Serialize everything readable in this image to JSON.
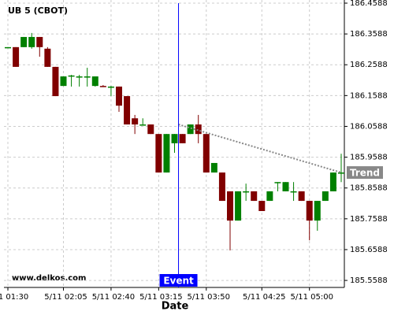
{
  "chart_data": {
    "type": "candlestick",
    "title": "UB 5 (CBOT)",
    "x_label": "Date",
    "watermark": "www.delkos.com",
    "categories": [
      "1 01:30",
      null,
      null,
      null,
      null,
      null,
      null,
      "5/11 02:05",
      null,
      null,
      null,
      null,
      null,
      "5/11 02:40",
      null,
      null,
      null,
      null,
      null,
      "5/11 03:15",
      null,
      null,
      null,
      null,
      null,
      "5/11 03:50",
      null,
      null,
      null,
      null,
      null,
      null,
      "5/11 04:25",
      null,
      null,
      null,
      null,
      null,
      "5/11 05:00",
      null,
      null,
      null,
      null
    ],
    "open": [
      186.316,
      186.316,
      186.316,
      186.316,
      186.349,
      186.311,
      186.252,
      186.19,
      186.221,
      186.221,
      186.221,
      186.19,
      186.19,
      186.188,
      186.188,
      186.157,
      186.085,
      186.065,
      186.065,
      186.034,
      185.909,
      186.004,
      186.034,
      186.034,
      186.065,
      186.034,
      185.909,
      185.909,
      185.848,
      185.753,
      185.848,
      185.848,
      185.817,
      185.817,
      185.878,
      185.848,
      185.848,
      185.848,
      185.817,
      185.753,
      185.817,
      185.848,
      185.909
    ],
    "high": [
      186.316,
      186.316,
      186.349,
      186.362,
      186.349,
      186.316,
      186.252,
      186.221,
      186.226,
      186.226,
      186.249,
      186.221,
      186.193,
      186.19,
      186.188,
      186.157,
      186.096,
      186.085,
      186.065,
      186.034,
      186.034,
      186.034,
      186.034,
      186.065,
      186.096,
      186.034,
      185.94,
      185.909,
      185.848,
      185.848,
      185.873,
      185.848,
      185.817,
      185.848,
      185.878,
      185.878,
      185.878,
      185.848,
      185.817,
      185.817,
      185.848,
      185.909,
      185.97
    ],
    "low": [
      186.313,
      186.252,
      186.316,
      186.311,
      186.285,
      186.252,
      186.157,
      186.19,
      186.188,
      186.188,
      186.188,
      186.188,
      186.188,
      186.157,
      186.106,
      186.065,
      186.034,
      186.065,
      186.034,
      185.909,
      185.909,
      185.973,
      186.004,
      186.034,
      186.004,
      185.909,
      185.909,
      185.817,
      185.656,
      185.753,
      185.817,
      185.817,
      185.784,
      185.817,
      185.848,
      185.848,
      185.817,
      185.817,
      185.689,
      185.72,
      185.817,
      185.848,
      185.878
    ],
    "close": [
      186.316,
      186.252,
      186.349,
      186.349,
      186.316,
      186.252,
      186.157,
      186.221,
      186.224,
      186.221,
      186.221,
      186.221,
      186.188,
      186.188,
      186.126,
      186.065,
      186.065,
      186.065,
      186.034,
      185.909,
      186.034,
      186.034,
      186.004,
      186.065,
      186.034,
      185.909,
      185.94,
      185.817,
      185.753,
      185.848,
      185.848,
      185.817,
      185.784,
      185.848,
      185.878,
      185.878,
      185.848,
      185.817,
      185.753,
      185.817,
      185.848,
      185.909,
      185.909
    ],
    "up_color": "#008000",
    "down_color": "#800000",
    "ylim": [
      185.536,
      186.469
    ],
    "yticks": [
      186.4588,
      186.3588,
      186.2588,
      186.1588,
      186.0588,
      185.9588,
      185.8588,
      185.7588,
      185.6588,
      185.5588
    ],
    "grid": true,
    "event": {
      "label": "Event",
      "index": 21.5,
      "color": "#0000ff"
    },
    "trend": {
      "label": "Trend",
      "from_index": 21.5,
      "from_value": 186.065,
      "to_index": 42,
      "to_value": 185.909,
      "color": "#888888"
    }
  }
}
